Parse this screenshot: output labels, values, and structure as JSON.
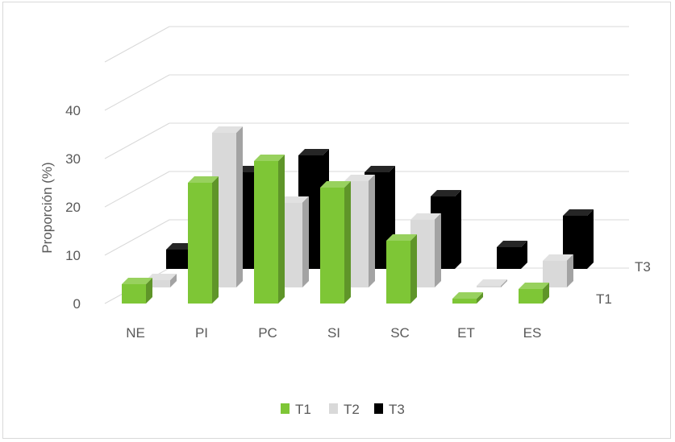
{
  "chart_data": {
    "type": "bar",
    "style": "3d-column",
    "title": "",
    "ylabel": "Proporción (%)",
    "xlabel": "",
    "categories": [
      "NE",
      "PI",
      "PC",
      "SI",
      "SC",
      "ET",
      "ES"
    ],
    "ylim": [
      0,
      40
    ],
    "yticks": [
      "0",
      "10",
      "20",
      "30",
      "40"
    ],
    "depth_labels": [
      "T3",
      "T1"
    ],
    "grid": true,
    "legend_position": "bottom",
    "series": [
      {
        "name": "T1",
        "values": [
          4,
          25,
          29.5,
          24,
          13,
          1,
          3
        ],
        "color": "#7ec636"
      },
      {
        "name": "T2",
        "values": [
          1.5,
          32,
          17.5,
          22,
          14,
          0.3,
          5.5
        ],
        "color": "#d9d9d9"
      },
      {
        "name": "T3",
        "values": [
          4,
          20,
          23.5,
          20,
          15,
          4.5,
          11
        ],
        "color": "#000000"
      }
    ]
  }
}
